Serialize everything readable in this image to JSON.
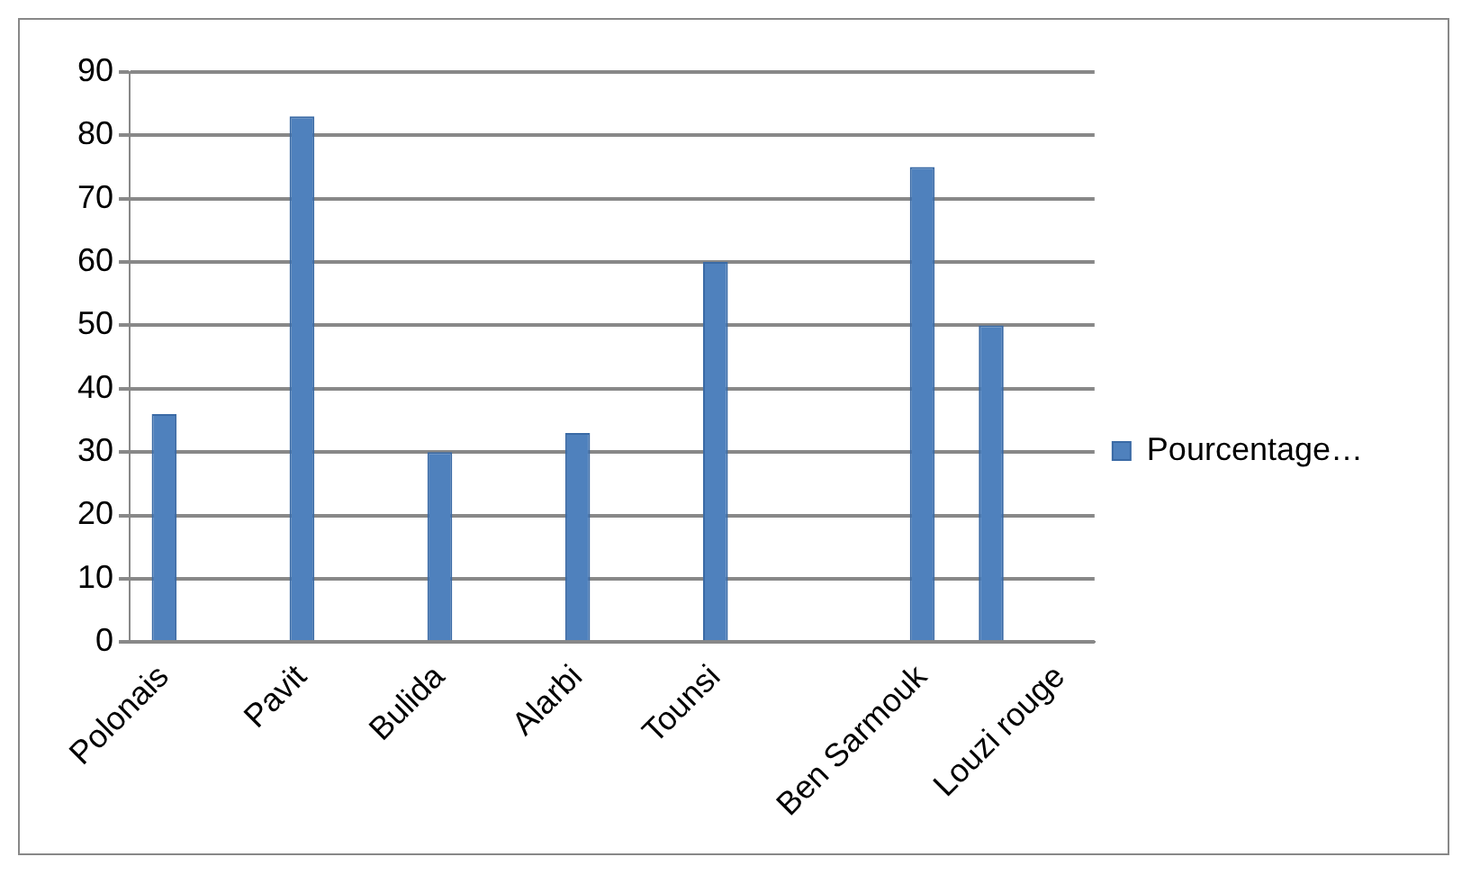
{
  "chart_data": {
    "type": "bar",
    "categories": [
      "Polonais",
      null,
      "Pavit",
      null,
      "Bulida",
      null,
      "Alarbi",
      null,
      "Tounsi",
      null,
      null,
      "Ben Sarmouk",
      null,
      "Louzi rouge"
    ],
    "series": [
      {
        "name": "Pourcentage…",
        "color": "#4f81bd",
        "values": [
          36,
          null,
          83,
          null,
          30,
          null,
          33,
          null,
          60,
          null,
          null,
          75,
          50,
          null
        ]
      }
    ],
    "ylim": [
      0,
      90
    ],
    "yticks": [
      0,
      10,
      20,
      30,
      40,
      50,
      60,
      70,
      80,
      90
    ],
    "grid": "y",
    "legend": "right"
  }
}
